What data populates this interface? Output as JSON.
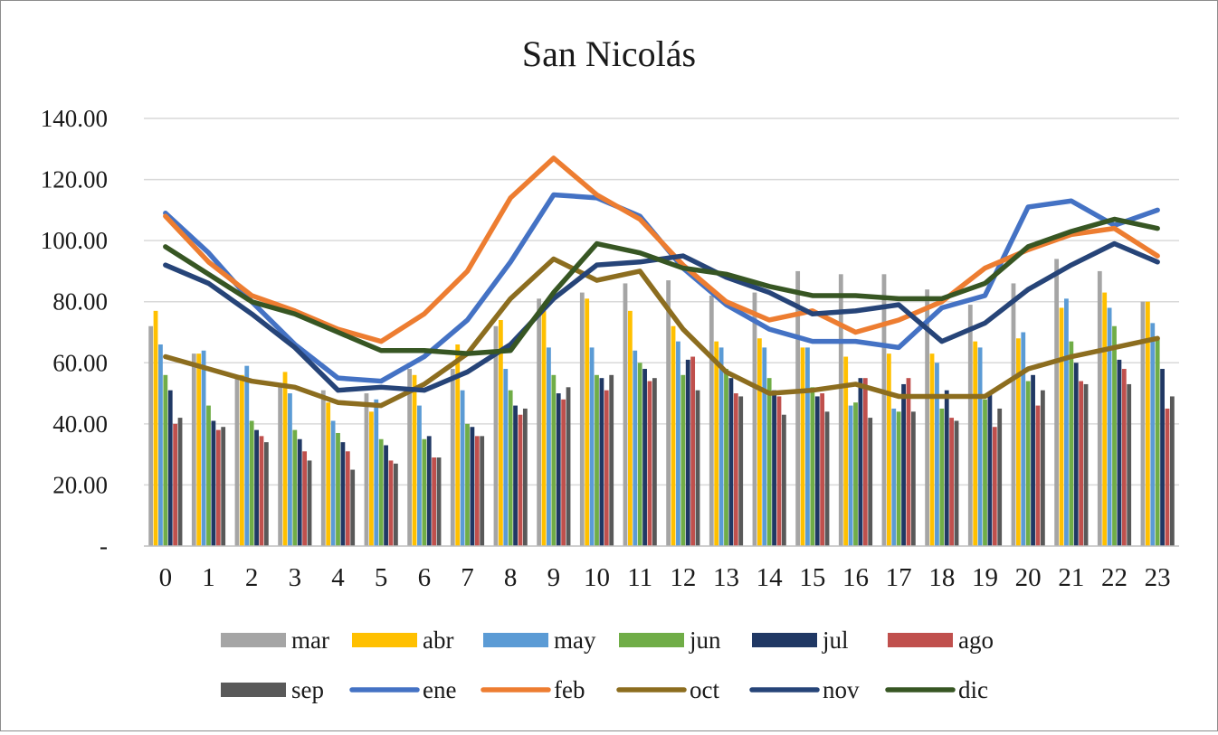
{
  "chart_data": {
    "type": "bar+line",
    "title": "San Nicolás",
    "xlabel": "",
    "ylabel": "",
    "ylim": [
      0,
      140
    ],
    "yticks": [
      0,
      20,
      40,
      60,
      80,
      100,
      120,
      140
    ],
    "ytick_labels": [
      "-",
      "20.00",
      "40.00",
      "60.00",
      "80.00",
      "100.00",
      "120.00",
      "140.00"
    ],
    "grid": true,
    "legend_position": "bottom",
    "categories": [
      "0",
      "1",
      "2",
      "3",
      "4",
      "5",
      "6",
      "7",
      "8",
      "9",
      "10",
      "11",
      "12",
      "13",
      "14",
      "15",
      "16",
      "17",
      "18",
      "19",
      "20",
      "21",
      "22",
      "23"
    ],
    "bar_series": [
      {
        "name": "mar",
        "color": "#a5a5a5",
        "values": [
          72,
          63,
          56,
          52,
          51,
          50,
          58,
          58,
          72,
          81,
          83,
          86,
          87,
          82,
          83,
          90,
          89,
          89,
          84,
          79,
          86,
          94,
          90,
          80
        ]
      },
      {
        "name": "abr",
        "color": "#ffc000",
        "values": [
          77,
          63,
          56,
          57,
          47,
          44,
          56,
          66,
          74,
          77,
          81,
          77,
          72,
          67,
          68,
          65,
          62,
          63,
          63,
          67,
          68,
          78,
          83,
          80
        ]
      },
      {
        "name": "may",
        "color": "#5b9bd5",
        "values": [
          66,
          64,
          59,
          50,
          41,
          48,
          46,
          51,
          58,
          65,
          65,
          64,
          67,
          65,
          65,
          65,
          46,
          45,
          60,
          65,
          70,
          81,
          78,
          73
        ]
      },
      {
        "name": "jun",
        "color": "#70ad47",
        "values": [
          56,
          46,
          41,
          38,
          37,
          35,
          35,
          40,
          51,
          56,
          56,
          60,
          56,
          58,
          55,
          52,
          47,
          44,
          45,
          48,
          54,
          67,
          72,
          68
        ]
      },
      {
        "name": "jul",
        "color": "#203864",
        "values": [
          51,
          41,
          38,
          35,
          34,
          33,
          36,
          39,
          46,
          50,
          55,
          58,
          61,
          55,
          51,
          49,
          55,
          53,
          51,
          50,
          56,
          60,
          61,
          58
        ]
      },
      {
        "name": "ago",
        "color": "#c0504d",
        "values": [
          40,
          38,
          36,
          31,
          31,
          28,
          29,
          36,
          43,
          48,
          51,
          54,
          62,
          50,
          49,
          50,
          55,
          55,
          42,
          39,
          46,
          54,
          58,
          45
        ]
      },
      {
        "name": "sep",
        "color": "#595959",
        "values": [
          42,
          39,
          34,
          28,
          25,
          27,
          29,
          36,
          45,
          52,
          56,
          55,
          51,
          49,
          43,
          44,
          42,
          44,
          41,
          45,
          51,
          53,
          53,
          49
        ]
      }
    ],
    "line_series": [
      {
        "name": "ene",
        "color": "#4472c4",
        "values": [
          109,
          96,
          80,
          66,
          55,
          54,
          62,
          74,
          93,
          115,
          114,
          108,
          91,
          79,
          71,
          67,
          67,
          65,
          78,
          82,
          111,
          113,
          105,
          110
        ]
      },
      {
        "name": "feb",
        "color": "#ed7d31",
        "values": [
          108,
          93,
          82,
          77,
          71,
          67,
          76,
          90,
          114,
          127,
          115,
          107,
          92,
          80,
          74,
          77,
          70,
          74,
          80,
          91,
          97,
          102,
          104,
          95
        ]
      },
      {
        "name": "oct",
        "color": "#8c6d1f",
        "values": [
          62,
          58,
          54,
          52,
          47,
          46,
          53,
          63,
          81,
          94,
          87,
          90,
          71,
          57,
          50,
          51,
          53,
          49,
          49,
          49,
          58,
          62,
          65,
          68
        ]
      },
      {
        "name": "nov",
        "color": "#264478",
        "values": [
          92,
          86,
          76,
          65,
          51,
          52,
          51,
          57,
          66,
          81,
          92,
          93,
          95,
          88,
          83,
          76,
          77,
          79,
          67,
          73,
          84,
          92,
          99,
          93
        ]
      },
      {
        "name": "dic",
        "color": "#375623",
        "values": [
          98,
          89,
          80,
          76,
          70,
          64,
          64,
          63,
          64,
          83,
          99,
          96,
          91,
          89,
          85,
          82,
          82,
          81,
          81,
          86,
          98,
          103,
          107,
          104
        ]
      }
    ],
    "legend_order": [
      "mar",
      "abr",
      "may",
      "jun",
      "jul",
      "ago",
      "sep",
      "ene",
      "feb",
      "oct",
      "nov",
      "dic"
    ]
  }
}
